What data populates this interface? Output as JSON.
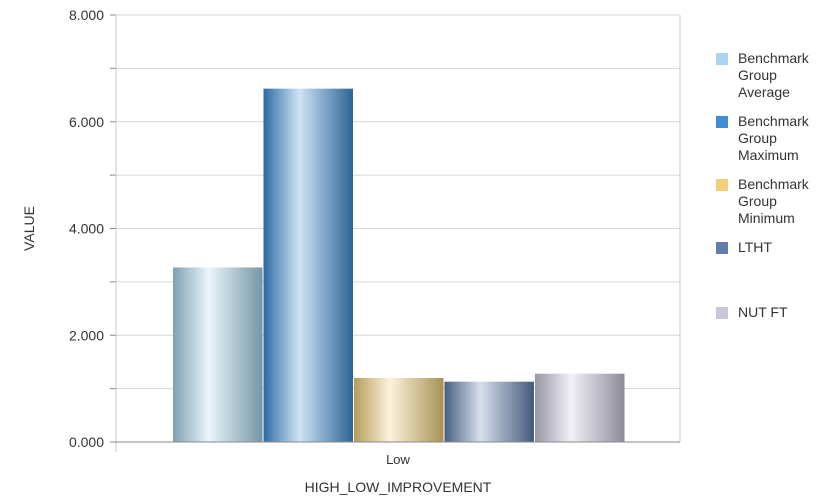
{
  "chart_data": {
    "type": "bar",
    "categories": [
      "Low"
    ],
    "series": [
      {
        "name": "Benchmark Group Average",
        "values": [
          3.27
        ],
        "color": "#a9d6ee"
      },
      {
        "name": "Benchmark Group Maximum",
        "values": [
          6.62
        ],
        "color": "#3f8fd6"
      },
      {
        "name": "Benchmark Group Minimum",
        "values": [
          1.2
        ],
        "color": "#f0cf78"
      },
      {
        "name": "LTHT",
        "values": [
          1.13
        ],
        "color": "#5f7fae"
      },
      {
        "name": "NUT FT",
        "values": [
          1.28
        ],
        "color": "#cbc6dc"
      }
    ],
    "xlabel": "HIGH_LOW_IMPROVEMENT",
    "ylabel": "VALUE",
    "ylim": [
      0,
      8
    ],
    "yticks": [
      "0.000",
      "2.000",
      "4.000",
      "6.000",
      "8.000"
    ],
    "grid": true,
    "legend": "right"
  }
}
